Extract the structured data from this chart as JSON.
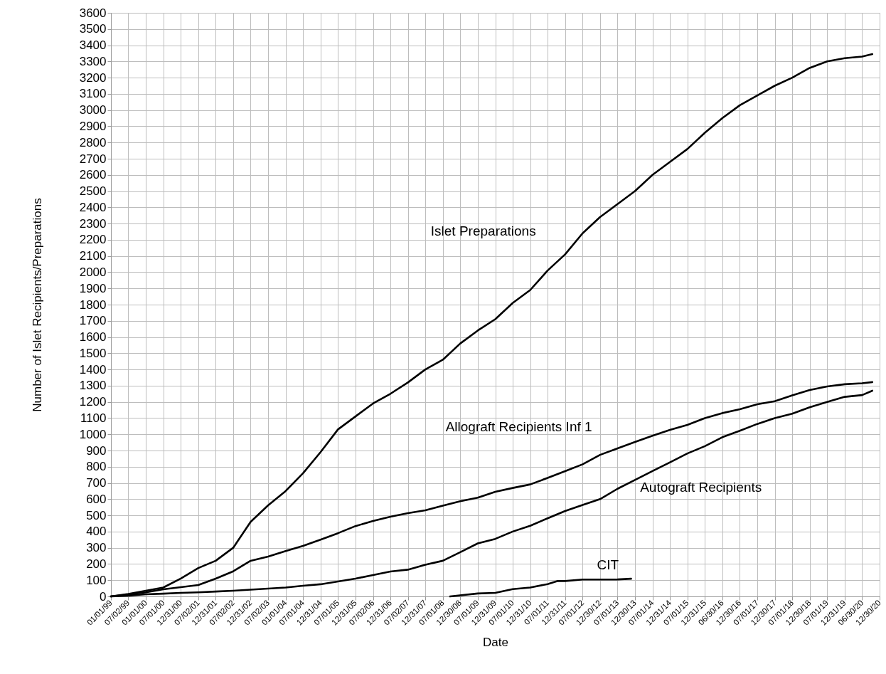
{
  "chart_data": {
    "type": "line",
    "xlabel": "Date",
    "ylabel": "Number of Islet Recipients/Preparations",
    "xlim": [
      "1999-01-01",
      "2020-12-30"
    ],
    "xticks": [
      {
        "value": "1999-01-01",
        "label": "01/01/99"
      },
      {
        "value": "1999-07-02",
        "label": "07/02/99"
      },
      {
        "value": "2000-01-01",
        "label": "01/01/00"
      },
      {
        "value": "2000-07-01",
        "label": "07/01/00"
      },
      {
        "value": "2000-12-31",
        "label": "12/31/00"
      },
      {
        "value": "2001-07-02",
        "label": "07/02/01"
      },
      {
        "value": "2001-12-31",
        "label": "12/31/01"
      },
      {
        "value": "2002-07-02",
        "label": "07/02/02"
      },
      {
        "value": "2002-12-31",
        "label": "12/31/02"
      },
      {
        "value": "2003-07-02",
        "label": "07/02/03"
      },
      {
        "value": "2004-01-01",
        "label": "01/01/04"
      },
      {
        "value": "2004-07-01",
        "label": "07/01/04"
      },
      {
        "value": "2004-12-31",
        "label": "12/31/04"
      },
      {
        "value": "2005-07-01",
        "label": "07/01/05"
      },
      {
        "value": "2005-12-31",
        "label": "12/31/05"
      },
      {
        "value": "2006-07-02",
        "label": "07/02/06"
      },
      {
        "value": "2006-12-31",
        "label": "12/31/06"
      },
      {
        "value": "2007-07-02",
        "label": "07/02/07"
      },
      {
        "value": "2007-12-31",
        "label": "12/31/07"
      },
      {
        "value": "2008-07-01",
        "label": "07/01/08"
      },
      {
        "value": "2008-12-30",
        "label": "12/30/08"
      },
      {
        "value": "2009-07-01",
        "label": "07/01/09"
      },
      {
        "value": "2009-12-31",
        "label": "12/31/09"
      },
      {
        "value": "2010-07-01",
        "label": "07/01/10"
      },
      {
        "value": "2010-12-31",
        "label": "12/31/10"
      },
      {
        "value": "2011-07-01",
        "label": "07/01/11"
      },
      {
        "value": "2011-12-31",
        "label": "12/31/11"
      },
      {
        "value": "2012-07-01",
        "label": "07/01/12"
      },
      {
        "value": "2012-12-30",
        "label": "12/30/12"
      },
      {
        "value": "2013-07-01",
        "label": "07/01/13"
      },
      {
        "value": "2013-12-30",
        "label": "12/30/13"
      },
      {
        "value": "2014-07-01",
        "label": "07/01/14"
      },
      {
        "value": "2014-12-31",
        "label": "12/31/14"
      },
      {
        "value": "2015-07-01",
        "label": "07/01/15"
      },
      {
        "value": "2015-12-31",
        "label": "12/31/15"
      },
      {
        "value": "2016-06-30",
        "label": "06/30/16"
      },
      {
        "value": "2016-12-30",
        "label": "12/30/16"
      },
      {
        "value": "2017-07-01",
        "label": "07/01/17"
      },
      {
        "value": "2017-12-30",
        "label": "12/30/17"
      },
      {
        "value": "2018-07-01",
        "label": "07/01/18"
      },
      {
        "value": "2018-12-30",
        "label": "12/30/18"
      },
      {
        "value": "2019-07-01",
        "label": "07/01/19"
      },
      {
        "value": "2019-12-31",
        "label": "12/31/19"
      },
      {
        "value": "2020-06-30",
        "label": "06/30/20"
      },
      {
        "value": "2020-12-30",
        "label": "12/30/20"
      }
    ],
    "ylim": [
      0,
      3600
    ],
    "yticks": [
      0,
      100,
      200,
      300,
      400,
      500,
      600,
      700,
      800,
      900,
      1000,
      1100,
      1200,
      1300,
      1400,
      1500,
      1600,
      1700,
      1800,
      1900,
      2000,
      2100,
      2200,
      2300,
      2400,
      2500,
      2600,
      2700,
      2800,
      2900,
      3000,
      3100,
      3200,
      3300,
      3400,
      3500,
      3600
    ],
    "grid": true,
    "x": [
      "1999-01-01",
      "1999-07-02",
      "2000-01-01",
      "2000-07-01",
      "2000-12-31",
      "2001-07-02",
      "2001-12-31",
      "2002-07-02",
      "2002-12-31",
      "2003-07-02",
      "2004-01-01",
      "2004-07-01",
      "2004-12-31",
      "2005-07-01",
      "2005-12-31",
      "2006-07-02",
      "2006-12-31",
      "2007-07-02",
      "2007-12-31",
      "2008-07-01",
      "2008-12-30",
      "2009-07-01",
      "2009-12-31",
      "2010-07-01",
      "2010-12-31",
      "2011-07-01",
      "2011-12-31",
      "2012-07-01",
      "2012-12-30",
      "2013-07-01",
      "2013-12-30",
      "2014-07-01",
      "2014-12-31",
      "2015-07-01",
      "2015-12-31",
      "2016-06-30",
      "2016-12-30",
      "2017-07-01",
      "2017-12-30",
      "2018-07-01",
      "2018-12-30",
      "2019-07-01",
      "2019-12-31",
      "2020-06-30",
      "2020-10-15"
    ],
    "series": [
      {
        "name": "Islet Preparations",
        "color": "#000000",
        "values": [
          0,
          15,
          35,
          55,
          110,
          175,
          220,
          300,
          460,
          562,
          650,
          760,
          890,
          1030,
          1110,
          1190,
          1250,
          1320,
          1400,
          1460,
          1560,
          1640,
          1710,
          1810,
          1890,
          2010,
          2110,
          2240,
          2340,
          2420,
          2500,
          2600,
          2680,
          2760,
          2860,
          2950,
          3030,
          3090,
          3150,
          3200,
          3260,
          3300,
          3320,
          3330,
          3345
        ]
      },
      {
        "name": "Allograft Recipients Inf 1",
        "color": "#000000",
        "values": [
          0,
          12,
          25,
          44,
          57,
          70,
          110,
          155,
          220,
          246,
          280,
          312,
          350,
          390,
          434,
          465,
          492,
          514,
          531,
          560,
          587,
          609,
          645,
          669,
          691,
          731,
          773,
          815,
          873,
          913,
          953,
          991,
          1027,
          1058,
          1100,
          1131,
          1155,
          1185,
          1204,
          1240,
          1273,
          1295,
          1309,
          1315,
          1322
        ]
      },
      {
        "name": "Autograft Recipients",
        "color": "#000000",
        "values": [
          0,
          5,
          13,
          17,
          22,
          25,
          30,
          35,
          42,
          48,
          55,
          66,
          75,
          92,
          110,
          132,
          154,
          165,
          195,
          220,
          273,
          327,
          355,
          400,
          436,
          482,
          527,
          564,
          600,
          664,
          718,
          773,
          827,
          882,
          927,
          982,
          1022,
          1064,
          1100,
          1127,
          1167,
          1200,
          1231,
          1242,
          1269
        ]
      },
      {
        "name": "CIT",
        "color": "#000000",
        "x": [
          "2008-09-15",
          "2009-07-01",
          "2009-12-31",
          "2010-07-01",
          "2010-12-31",
          "2011-07-01",
          "2011-10-15",
          "2011-12-31",
          "2012-07-01",
          "2012-12-30",
          "2013-07-01",
          "2013-11-20"
        ],
        "values": [
          0,
          18,
          22,
          45,
          55,
          76,
          95,
          95,
          104,
          104,
          105,
          109
        ]
      }
    ]
  }
}
